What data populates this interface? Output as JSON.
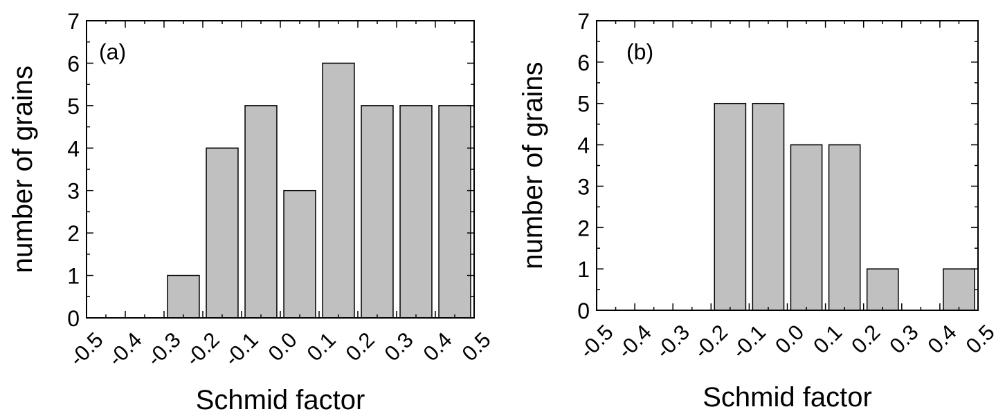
{
  "colors": {
    "bar_fill": "#c0c0c0",
    "bar_stroke": "#000000",
    "axis": "#000000"
  },
  "chart_data": [
    {
      "type": "bar",
      "panel_label": "(a)",
      "xlabel": "Schmid factor",
      "ylabel": "number of grains",
      "xlim": [
        -0.5,
        0.5
      ],
      "ylim": [
        0,
        7
      ],
      "xticks": [
        "-0.5",
        "-0.4",
        "-0.3",
        "-0.2",
        "-0.1",
        "0.0",
        "0.1",
        "0.2",
        "0.3",
        "0.4",
        "0.5"
      ],
      "yticks": [
        "0",
        "1",
        "2",
        "3",
        "4",
        "5",
        "6",
        "7"
      ],
      "bin_width": 0.1,
      "x": [
        -0.25,
        -0.15,
        -0.05,
        0.05,
        0.15,
        0.25,
        0.35,
        0.45
      ],
      "values": [
        1,
        4,
        5,
        3,
        6,
        5,
        5,
        5
      ]
    },
    {
      "type": "bar",
      "panel_label": "(b)",
      "xlabel": "Schmid factor",
      "ylabel": "number of grains",
      "xlim": [
        -0.5,
        0.5
      ],
      "ylim": [
        0,
        7
      ],
      "xticks": [
        "-0.5",
        "-0.4",
        "-0.3",
        "-0.2",
        "-0.1",
        "0.0",
        "0.1",
        "0.2",
        "0.3",
        "0.4",
        "0.5"
      ],
      "yticks": [
        "0",
        "1",
        "2",
        "3",
        "4",
        "5",
        "6",
        "7"
      ],
      "bin_width": 0.1,
      "x": [
        -0.15,
        -0.05,
        0.05,
        0.15,
        0.25,
        0.45
      ],
      "values": [
        5,
        5,
        4,
        4,
        1,
        1
      ]
    }
  ]
}
